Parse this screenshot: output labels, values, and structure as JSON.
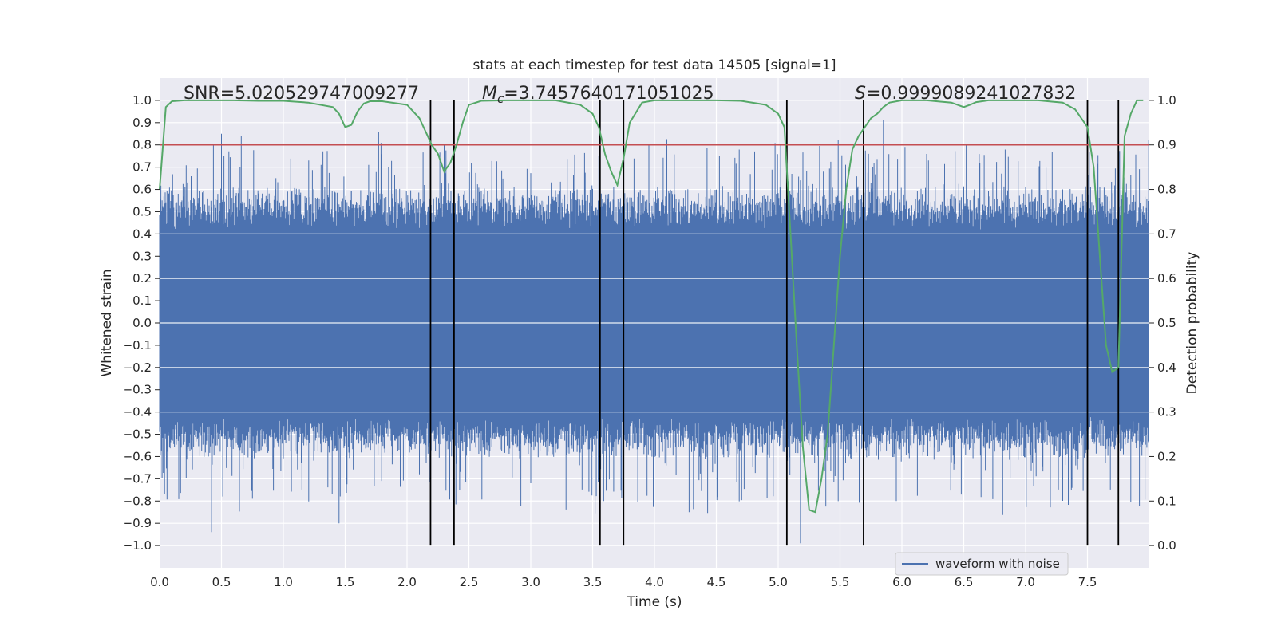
{
  "chart_data": {
    "type": "line",
    "title": "stats at each timestep for test data 14505 [signal=1]",
    "xlabel": "Time (s)",
    "ylabel": "Whitened strain",
    "ylabel_right": "Detection probability",
    "xlim": [
      0.0,
      8.0
    ],
    "ylim": [
      -1.1,
      1.1
    ],
    "ylim_right": [
      -0.05,
      1.05
    ],
    "x_ticks": [
      "0.0",
      "0.5",
      "1.0",
      "1.5",
      "2.0",
      "2.5",
      "3.0",
      "3.5",
      "4.0",
      "4.5",
      "5.0",
      "5.5",
      "6.0",
      "6.5",
      "7.0",
      "7.5"
    ],
    "x_tick_values": [
      0,
      0.5,
      1,
      1.5,
      2,
      2.5,
      3,
      3.5,
      4,
      4.5,
      5,
      5.5,
      6,
      6.5,
      7,
      7.5
    ],
    "y_ticks": [
      "1.0",
      "0.9",
      "0.8",
      "0.7",
      "0.6",
      "0.5",
      "0.4",
      "0.3",
      "0.2",
      "0.1",
      "0.0",
      "−0.1",
      "−0.2",
      "−0.3",
      "−0.4",
      "−0.5",
      "−0.6",
      "−0.7",
      "−0.8",
      "−0.9",
      "−1.0"
    ],
    "y_tick_values": [
      1.0,
      0.9,
      0.8,
      0.7,
      0.6,
      0.5,
      0.4,
      0.3,
      0.2,
      0.1,
      0.0,
      -0.1,
      -0.2,
      -0.3,
      -0.4,
      -0.5,
      -0.6,
      -0.7,
      -0.8,
      -0.9,
      -1.0
    ],
    "y_right_ticks": [
      "1.0",
      "0.9",
      "0.8",
      "0.7",
      "0.6",
      "0.5",
      "0.4",
      "0.3",
      "0.2",
      "0.1",
      "0.0"
    ],
    "y_right_tick_values": [
      1.0,
      0.9,
      0.8,
      0.7,
      0.6,
      0.5,
      0.4,
      0.3,
      0.2,
      0.1,
      0.0
    ],
    "annotations": {
      "snr": "SNR=5.020529747009277",
      "mc_symbol": "M",
      "mc_sub": "c",
      "mc_value": "=3.7457640171051025",
      "s_symbol": "S",
      "s_value": "=0.9999089241027832"
    },
    "threshold": {
      "value": 0.9,
      "axis": "right",
      "color": "#c44e52"
    },
    "vertical_lines": [
      2.19,
      2.38,
      3.56,
      3.75,
      5.07,
      5.69,
      7.5,
      7.75
    ],
    "waveform": {
      "name": "waveform with noise",
      "color": "#4c72b0",
      "samples": 1600,
      "core_amplitude": 0.42,
      "peak_max": 0.9,
      "peak_min": -0.95
    },
    "detection_probability": {
      "color": "#55a868",
      "x": [
        0.0,
        0.05,
        0.1,
        0.2,
        0.4,
        0.6,
        0.8,
        1.0,
        1.2,
        1.4,
        1.45,
        1.5,
        1.55,
        1.6,
        1.65,
        1.7,
        1.8,
        2.0,
        2.1,
        2.15,
        2.2,
        2.25,
        2.3,
        2.35,
        2.4,
        2.45,
        2.5,
        2.6,
        2.8,
        3.0,
        3.2,
        3.4,
        3.5,
        3.55,
        3.6,
        3.65,
        3.7,
        3.75,
        3.8,
        3.9,
        4.0,
        4.2,
        4.5,
        4.7,
        4.9,
        5.0,
        5.05,
        5.1,
        5.15,
        5.2,
        5.25,
        5.3,
        5.35,
        5.4,
        5.45,
        5.5,
        5.55,
        5.6,
        5.65,
        5.7,
        5.75,
        5.8,
        5.85,
        5.9,
        6.0,
        6.2,
        6.4,
        6.5,
        6.55,
        6.6,
        6.7,
        6.9,
        7.1,
        7.3,
        7.4,
        7.5,
        7.55,
        7.6,
        7.65,
        7.7,
        7.75,
        7.8,
        7.85,
        7.9,
        7.95
      ],
      "y": [
        0.8,
        0.985,
        0.998,
        1.0,
        1.0,
        1.0,
        0.999,
        0.999,
        0.995,
        0.985,
        0.97,
        0.94,
        0.945,
        0.975,
        0.993,
        0.998,
        0.998,
        0.99,
        0.96,
        0.93,
        0.9,
        0.88,
        0.84,
        0.86,
        0.9,
        0.95,
        0.99,
        0.999,
        1.0,
        1.0,
        1.0,
        0.99,
        0.97,
        0.94,
        0.88,
        0.84,
        0.81,
        0.87,
        0.95,
        0.995,
        1.0,
        1.0,
        1.0,
        0.999,
        0.99,
        0.97,
        0.94,
        0.7,
        0.45,
        0.22,
        0.08,
        0.075,
        0.15,
        0.25,
        0.45,
        0.65,
        0.8,
        0.89,
        0.92,
        0.94,
        0.96,
        0.97,
        0.985,
        0.995,
        1.0,
        1.0,
        0.995,
        0.985,
        0.99,
        0.996,
        1.0,
        1.0,
        1.0,
        0.995,
        0.98,
        0.94,
        0.85,
        0.65,
        0.45,
        0.39,
        0.4,
        0.92,
        0.97,
        1.0,
        1.0
      ]
    }
  }
}
